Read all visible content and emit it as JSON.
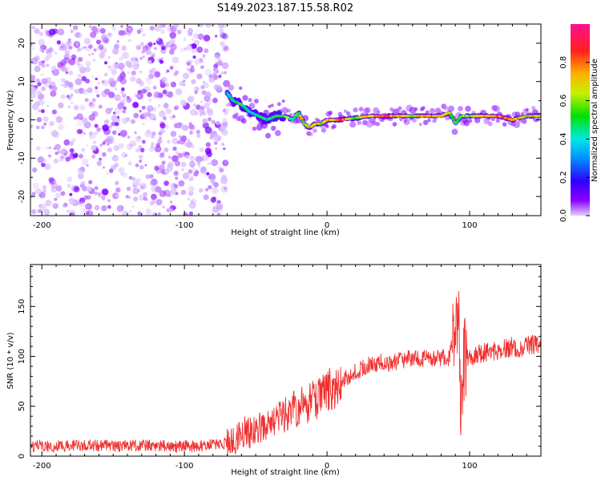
{
  "title": "S149.2023.187.15.58.R02",
  "chart_data": [
    {
      "type": "heatmap",
      "xlabel": "Height of straight line (km)",
      "ylabel": "Frequency (Hz)",
      "xlim": [
        -208,
        150
      ],
      "ylim": [
        -25,
        25
      ],
      "xticks": [
        -200,
        -100,
        0,
        100
      ],
      "yticks": [
        -20,
        -10,
        0,
        10,
        20
      ],
      "colorbar": {
        "label": "Normalized spectral amplitude",
        "range": [
          0,
          1
        ],
        "ticks": [
          0.0,
          0.2,
          0.4,
          0.6,
          0.8
        ],
        "colormap": [
          "#e0d0ff",
          "#8a00ff",
          "#3000ff",
          "#0090ff",
          "#00e8e8",
          "#00e000",
          "#c8f000",
          "#ffb000",
          "#ff2020",
          "#ff1090"
        ]
      },
      "noise_region": {
        "x_range": [
          -208,
          -70
        ],
        "amplitude": 0.15
      },
      "signal_track": [
        {
          "x": -70,
          "freq": 7,
          "amplitude": 0.4
        },
        {
          "x": -66,
          "freq": 5,
          "amplitude": 0.45
        },
        {
          "x": -60,
          "freq": 4,
          "amplitude": 0.5
        },
        {
          "x": -54,
          "freq": 2,
          "amplitude": 0.45
        },
        {
          "x": -48,
          "freq": 1,
          "amplitude": 0.5
        },
        {
          "x": -42,
          "freq": 0,
          "amplitude": 0.45
        },
        {
          "x": -36,
          "freq": 1,
          "amplitude": 0.5
        },
        {
          "x": -30,
          "freq": 1,
          "amplitude": 0.55
        },
        {
          "x": -24,
          "freq": 0,
          "amplitude": 0.55
        },
        {
          "x": -20,
          "freq": 2,
          "amplitude": 0.6
        },
        {
          "x": -16,
          "freq": -1,
          "amplitude": 0.65
        },
        {
          "x": -12,
          "freq": -2,
          "amplitude": 0.75
        },
        {
          "x": -8,
          "freq": -1,
          "amplitude": 0.7
        },
        {
          "x": -4,
          "freq": -1,
          "amplitude": 0.6
        },
        {
          "x": 0,
          "freq": 0,
          "amplitude": 0.75
        },
        {
          "x": 10,
          "freq": 0,
          "amplitude": 0.85
        },
        {
          "x": 20,
          "freq": 0.5,
          "amplitude": 0.6
        },
        {
          "x": 30,
          "freq": 1,
          "amplitude": 0.75
        },
        {
          "x": 40,
          "freq": 1,
          "amplitude": 0.85
        },
        {
          "x": 50,
          "freq": 1,
          "amplitude": 0.8
        },
        {
          "x": 60,
          "freq": 1,
          "amplitude": 0.7
        },
        {
          "x": 70,
          "freq": 1,
          "amplitude": 0.75
        },
        {
          "x": 80,
          "freq": 1,
          "amplitude": 0.8
        },
        {
          "x": 86,
          "freq": 2,
          "amplitude": 0.6
        },
        {
          "x": 90,
          "freq": -1,
          "amplitude": 0.5
        },
        {
          "x": 94,
          "freq": 1,
          "amplitude": 0.55
        },
        {
          "x": 100,
          "freq": 1,
          "amplitude": 0.65
        },
        {
          "x": 110,
          "freq": 1,
          "amplitude": 0.7
        },
        {
          "x": 120,
          "freq": 1,
          "amplitude": 0.85
        },
        {
          "x": 130,
          "freq": 0,
          "amplitude": 0.8
        },
        {
          "x": 140,
          "freq": 1,
          "amplitude": 0.7
        },
        {
          "x": 150,
          "freq": 1,
          "amplitude": 0.75
        }
      ]
    },
    {
      "type": "line",
      "xlabel": "Height of straight line (km)",
      "ylabel": "SNR (10 * v/v)",
      "xlim": [
        -208,
        150
      ],
      "ylim": [
        0,
        192
      ],
      "xticks": [
        -200,
        -100,
        0,
        100
      ],
      "yticks": [
        0,
        50,
        100,
        150
      ],
      "color": "#f03030",
      "series": [
        {
          "x": [
            -208,
            -190,
            -170,
            -150,
            -130,
            -110,
            -90,
            -75,
            -65,
            -58,
            -52,
            -46,
            -40,
            -35,
            -30,
            -25,
            -20,
            -15,
            -10,
            -5,
            0,
            5,
            10,
            15,
            20,
            25,
            30,
            35,
            40,
            45,
            50,
            55,
            60,
            65,
            70,
            75,
            80,
            85,
            90,
            92,
            94,
            96,
            98,
            100,
            105,
            110,
            115,
            120,
            125,
            130,
            135,
            140,
            145,
            150
          ],
          "y": [
            10,
            10,
            11,
            10,
            11,
            10,
            10,
            12,
            15,
            25,
            22,
            30,
            35,
            38,
            42,
            45,
            50,
            52,
            55,
            58,
            65,
            70,
            75,
            80,
            85,
            88,
            92,
            92,
            95,
            93,
            95,
            97,
            98,
            96,
            100,
            98,
            99,
            98,
            120,
            150,
            40,
            95,
            98,
            100,
            101,
            104,
            105,
            106,
            108,
            110,
            108,
            111,
            112,
            113
          ]
        }
      ]
    }
  ]
}
